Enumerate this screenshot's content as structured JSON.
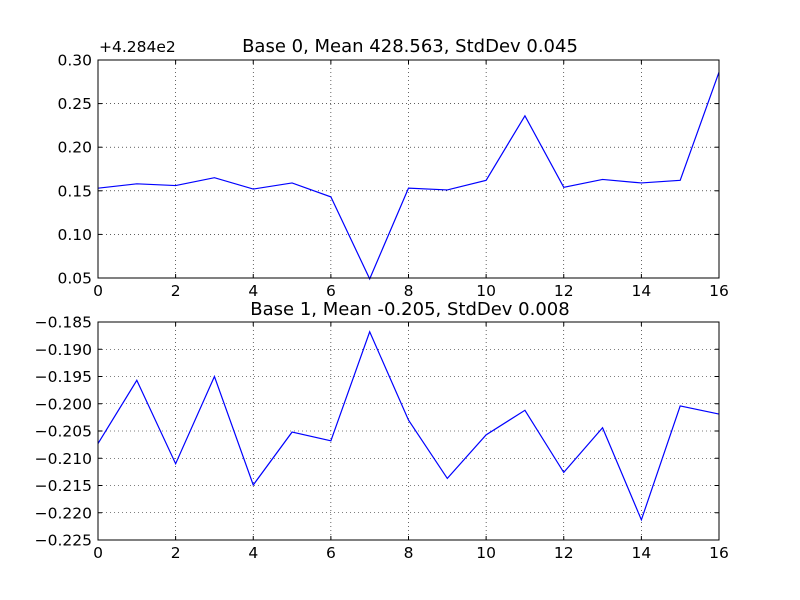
{
  "chart_data": [
    {
      "type": "line",
      "title": "Base 0, Mean 428.563, StdDev 0.045",
      "offset_label": "+4.284e2",
      "xlabel": "",
      "ylabel": "",
      "xlim": [
        0,
        16
      ],
      "ylim": [
        0.05,
        0.3
      ],
      "xticks": [
        0,
        2,
        4,
        6,
        8,
        10,
        12,
        14,
        16
      ],
      "yticks": [
        0.05,
        0.1,
        0.15,
        0.2,
        0.25,
        0.3
      ],
      "ytick_labels": [
        "0.05",
        "0.10",
        "0.15",
        "0.20",
        "0.25",
        "0.30"
      ],
      "grid": true,
      "color": "#0000ff",
      "x": [
        0,
        1,
        2,
        3,
        4,
        5,
        6,
        7,
        8,
        9,
        10,
        11,
        12,
        13,
        14,
        15,
        16
      ],
      "values": [
        0.153,
        0.158,
        0.156,
        0.165,
        0.152,
        0.159,
        0.143,
        0.049,
        0.153,
        0.151,
        0.162,
        0.236,
        0.154,
        0.163,
        0.159,
        0.162,
        0.286
      ]
    },
    {
      "type": "line",
      "title": "Base 1, Mean -0.205, StdDev 0.008",
      "offset_label": "",
      "xlabel": "",
      "ylabel": "",
      "xlim": [
        0,
        16
      ],
      "ylim": [
        -0.225,
        -0.185
      ],
      "xticks": [
        0,
        2,
        4,
        6,
        8,
        10,
        12,
        14,
        16
      ],
      "yticks": [
        -0.225,
        -0.22,
        -0.215,
        -0.21,
        -0.205,
        -0.2,
        -0.195,
        -0.19,
        -0.185
      ],
      "ytick_labels": [
        "−0.225",
        "−0.220",
        "−0.215",
        "−0.210",
        "−0.205",
        "−0.200",
        "−0.195",
        "−0.190",
        "−0.185"
      ],
      "grid": true,
      "color": "#0000ff",
      "x": [
        0,
        1,
        2,
        3,
        4,
        5,
        6,
        7,
        8,
        9,
        10,
        11,
        12,
        13,
        14,
        15,
        16
      ],
      "values": [
        -0.2073,
        -0.1957,
        -0.211,
        -0.195,
        -0.2149,
        -0.2052,
        -0.2068,
        -0.1868,
        -0.203,
        -0.2137,
        -0.2057,
        -0.2012,
        -0.2126,
        -0.2044,
        -0.2213,
        -0.2004,
        -0.2019
      ]
    }
  ]
}
